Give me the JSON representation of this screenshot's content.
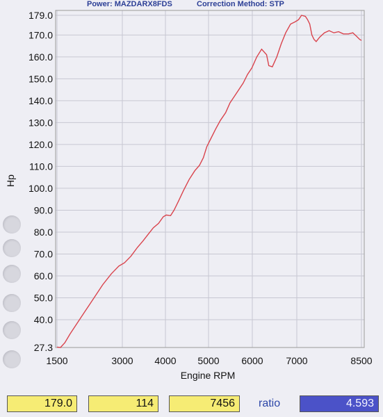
{
  "header": {
    "power_text": "Power: MAZDARX8FDS",
    "correction_text": "Correction Method: STP"
  },
  "chart_data": {
    "type": "line",
    "xlabel": "Engine RPM",
    "ylabel": "Hp",
    "x_ticks": [
      "1500",
      "3000",
      "4000",
      "5000",
      "6000",
      "7000",
      "8500"
    ],
    "y_ticks": [
      "27.3",
      "40.0",
      "50.0",
      "60.0",
      "70.0",
      "80.0",
      "90.0",
      "100.0",
      "110.0",
      "120.0",
      "130.0",
      "140.0",
      "150.0",
      "160.0",
      "170.0",
      "179.0"
    ],
    "xlim": [
      1500,
      8500
    ],
    "ylim": [
      27.3,
      181.5
    ],
    "grid": true,
    "line_color": "#d9434c",
    "series": [
      {
        "x": [
          1500,
          1580,
          1680,
          1800,
          1950,
          2150,
          2350,
          2550,
          2750,
          2920,
          3050,
          3200,
          3350,
          3480,
          3600,
          3720,
          3840,
          3950,
          4020,
          4120,
          4200,
          4300,
          4420,
          4550,
          4680,
          4790,
          4880,
          4960,
          5060,
          5160,
          5270,
          5390,
          5490,
          5590,
          5690,
          5790,
          5890,
          5990,
          6100,
          6210,
          6320,
          6370,
          6450,
          6550,
          6650,
          6750,
          6860,
          6960,
          7040,
          7110,
          7200,
          7250,
          7300,
          7350,
          7400,
          7450,
          7530,
          7640,
          7750,
          7860,
          7970,
          8080,
          8200,
          8300,
          8380,
          8460,
          8500
        ],
        "y": [
          27.5,
          27.3,
          29.5,
          33.5,
          38,
          44,
          50,
          56,
          61,
          64.5,
          66,
          69,
          73,
          76,
          79,
          82,
          84,
          87,
          87.8,
          87.5,
          90,
          94,
          99,
          104,
          108,
          110.5,
          114,
          119,
          123,
          127,
          131,
          134.5,
          139,
          142,
          145,
          148,
          152,
          155,
          160,
          163.5,
          161,
          156,
          155.5,
          160,
          166,
          171,
          175,
          176,
          177,
          179,
          178.5,
          177,
          175,
          170,
          168,
          167,
          169,
          171,
          172,
          171,
          171.5,
          170.5,
          170.5,
          171,
          169.5,
          168,
          167.5
        ]
      }
    ]
  },
  "readouts": {
    "max_hp": "179.0",
    "value_2": "114",
    "rpm": "7456",
    "ratio_label": "ratio",
    "ratio_value": "4.593"
  }
}
